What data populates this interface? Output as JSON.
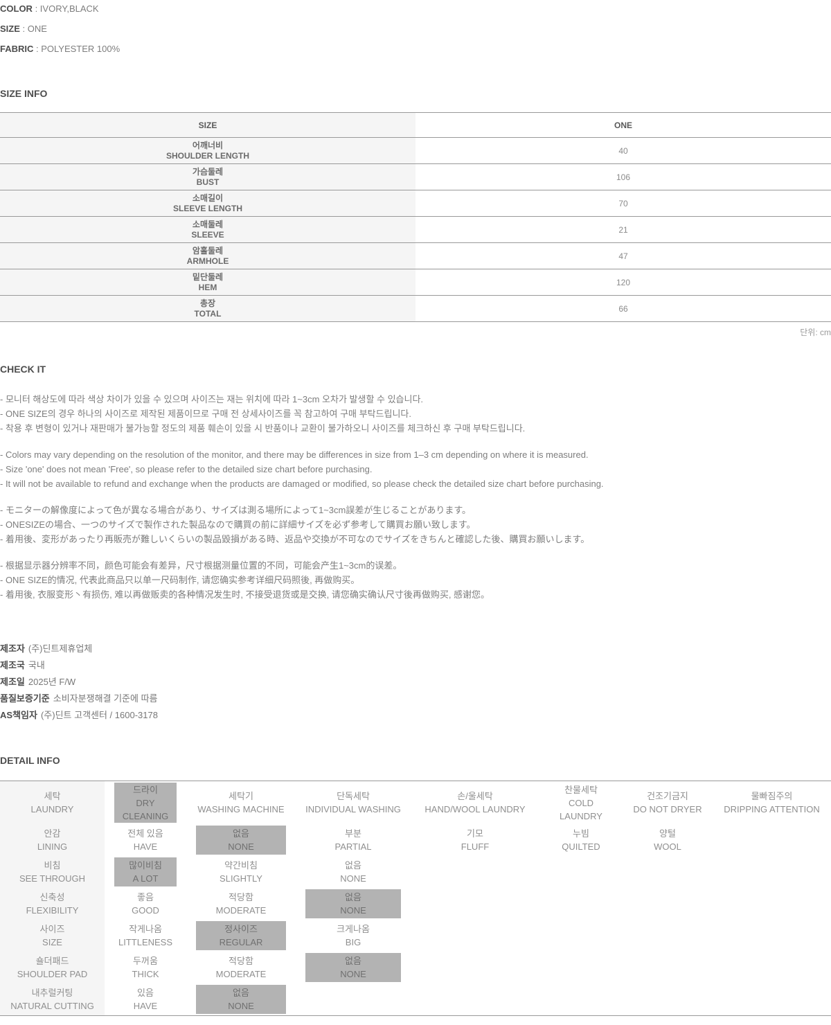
{
  "colors": {
    "selected_option_bg": "#b3b3b3",
    "label_column_bg": "#f5f5f5",
    "table_border": "#999999",
    "heading_text": "#4d4d4d",
    "body_text": "#7d7d7d"
  },
  "attributes": [
    {
      "label": "COLOR",
      "value": "IVORY,BLACK"
    },
    {
      "label": "SIZE",
      "value": "ONE"
    },
    {
      "label": "FABRIC",
      "value": "POLYESTER 100%"
    }
  ],
  "size_info": {
    "heading": "SIZE INFO",
    "columns": [
      "SIZE",
      "ONE"
    ],
    "rows": [
      {
        "ko": "어깨너비",
        "en": "SHOULDER LENGTH",
        "value": "40"
      },
      {
        "ko": "가슴둘레",
        "en": "BUST",
        "value": "106"
      },
      {
        "ko": "소매길이",
        "en": "SLEEVE LENGTH",
        "value": "70"
      },
      {
        "ko": "소매둘레",
        "en": "SLEEVE",
        "value": "21"
      },
      {
        "ko": "암홀둘레",
        "en": "ARMHOLE",
        "value": "47"
      },
      {
        "ko": "밑단둘레",
        "en": "HEM",
        "value": "120"
      },
      {
        "ko": "총장",
        "en": "TOTAL",
        "value": "66"
      }
    ],
    "unit_note": "단위: cm"
  },
  "check_it": {
    "heading": "CHECK IT",
    "notices": [
      {
        "lang": "ko",
        "lines": [
          "- 모니터 해상도에 따라 색상 차이가 있을 수 있으며 사이즈는 재는 위치에 따라 1~3cm 오차가 발생할 수 있습니다.",
          "- ONE SIZE의 경우 하나의 사이즈로 제작된 제품이므로 구매 전 상세사이즈를 꼭 참고하여 구매 부탁드립니다.",
          "- 착용 후 변형이 있거나 재판매가 불가능할 정도의 제품 훼손이 있을 시 반품이나 교환이 불가하오니 사이즈를 체크하신 후 구매 부탁드립니다."
        ]
      },
      {
        "lang": "en",
        "lines": [
          "- Colors may vary depending on the resolution of the monitor, and there may be differences in size from 1–3 cm depending on where it is measured.",
          "- Size 'one' does not mean 'Free', so please refer to the detailed size chart before purchasing.",
          "- It will not be available to refund and exchange when the products are damaged or modified, so please check the detailed size chart before purchasing."
        ]
      },
      {
        "lang": "ja",
        "lines": [
          "- モニターの解像度によって色が異なる場合があり、サイズは測る場所によって1~3cm誤差が生じることがあります。",
          "- ONESIZEの場合、一つのサイズで製作された製品なので購買の前に詳細サイズを必ず参考して購買お願い致します。",
          "- 着用後、変形があったり再販売が難しいくらいの製品毀損がある時、返品や交換が不可なのでサイズをきちんと確認した後、購買お願いします。"
        ]
      },
      {
        "lang": "zh",
        "lines": [
          "- 根据显示器分辨率不同，颜色可能会有差异，尺寸根据测量位置的不同，可能会产生1~3cm的误差。",
          "- ONE SIZE的情况, 代表此商品只以单一尺码制作, 请您确实参考详细尺码照後, 再做购买。",
          "- 着用後, 衣服变形丶有损伤, 难以再做贩卖的各种情况发生时, 不接受退货或是交换, 请您确实确认尺寸後再做购买, 感谢您。"
        ]
      }
    ]
  },
  "manufacturer": {
    "lines": [
      {
        "label": "제조자",
        "value": "(주)딘트제휴업체"
      },
      {
        "label": "제조국",
        "value": "국내"
      },
      {
        "label": "제조일",
        "value": "2025년 F/W"
      },
      {
        "label": "품질보증기준",
        "value": "소비자분쟁해결 기준에 따름"
      },
      {
        "label": "AS책임자",
        "value": "(주)딘트 고객센터 / 1600-3178"
      }
    ]
  },
  "detail_info": {
    "heading": "DETAIL INFO",
    "rows": [
      {
        "label": {
          "ko": "세탁",
          "en": "LAUNDRY"
        },
        "options": [
          {
            "col": 1,
            "ko": "드라이",
            "en": "DRY CLEANING",
            "selected": true
          },
          {
            "col": 2,
            "ko": "세탁기",
            "en": "WASHING MACHINE",
            "selected": false
          },
          {
            "col": 3,
            "ko": "단독세탁",
            "en": "INDIVIDUAL WASHING",
            "selected": false
          },
          {
            "col": 4,
            "ko": "손/울세탁",
            "en": "HAND/WOOL LAUNDRY",
            "selected": false
          },
          {
            "col": 5,
            "ko": "찬물세탁",
            "en": "COLD LAUNDRY",
            "selected": false
          },
          {
            "col": 6,
            "ko": "건조기금지",
            "en": "DO NOT DRYER",
            "selected": false
          },
          {
            "col": 7,
            "ko": "물빠짐주의",
            "en": "DRIPPING ATTENTION",
            "selected": false
          }
        ]
      },
      {
        "label": {
          "ko": "안감",
          "en": "LINING"
        },
        "options": [
          {
            "col": 1,
            "ko": "전체 있음",
            "en": "HAVE",
            "selected": false
          },
          {
            "col": 2,
            "ko": "없음",
            "en": "NONE",
            "selected": true
          },
          {
            "col": 3,
            "ko": "부분",
            "en": "PARTIAL",
            "selected": false
          },
          {
            "col": 4,
            "ko": "기모",
            "en": "FLUFF",
            "selected": false
          },
          {
            "col": 5,
            "ko": "누빔",
            "en": "QUILTED",
            "selected": false
          },
          {
            "col": 6,
            "ko": "양털",
            "en": "WOOL",
            "selected": false
          }
        ]
      },
      {
        "label": {
          "ko": "비침",
          "en": "SEE THROUGH"
        },
        "options": [
          {
            "col": 1,
            "ko": "많이비침",
            "en": "A LOT",
            "selected": true
          },
          {
            "col": 2,
            "ko": "약간비침",
            "en": "SLIGHTLY",
            "selected": false
          },
          {
            "col": 3,
            "ko": "없음",
            "en": "NONE",
            "selected": false
          }
        ]
      },
      {
        "label": {
          "ko": "신축성",
          "en": "FLEXIBILITY"
        },
        "options": [
          {
            "col": 1,
            "ko": "좋음",
            "en": "GOOD",
            "selected": false
          },
          {
            "col": 2,
            "ko": "적당함",
            "en": "MODERATE",
            "selected": false
          },
          {
            "col": 3,
            "ko": "없음",
            "en": "NONE",
            "selected": true
          }
        ]
      },
      {
        "label": {
          "ko": "사이즈",
          "en": "SIZE"
        },
        "options": [
          {
            "col": 1,
            "ko": "작게나옴",
            "en": "LITTLENESS",
            "selected": false
          },
          {
            "col": 2,
            "ko": "정사이즈",
            "en": "REGULAR",
            "selected": true
          },
          {
            "col": 3,
            "ko": "크게나옴",
            "en": "BIG",
            "selected": false
          }
        ]
      },
      {
        "label": {
          "ko": "숄더패드",
          "en": "SHOULDER PAD"
        },
        "options": [
          {
            "col": 1,
            "ko": "두꺼움",
            "en": "THICK",
            "selected": false
          },
          {
            "col": 2,
            "ko": "적당함",
            "en": "MODERATE",
            "selected": false
          },
          {
            "col": 3,
            "ko": "없음",
            "en": "NONE",
            "selected": true
          }
        ]
      },
      {
        "label": {
          "ko": "내추럴커팅",
          "en": "NATURAL CUTTING"
        },
        "options": [
          {
            "col": 1,
            "ko": "있음",
            "en": "HAVE",
            "selected": false
          },
          {
            "col": 2,
            "ko": "없음",
            "en": "NONE",
            "selected": true
          }
        ]
      }
    ]
  }
}
